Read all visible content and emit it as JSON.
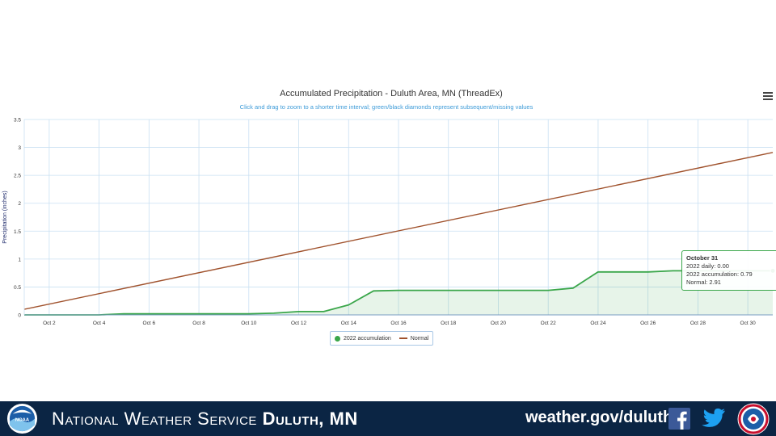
{
  "chart_data": {
    "type": "line",
    "title": "Accumulated Precipitation - Duluth Area, MN (ThreadEx)",
    "subtitle": "Click and drag to zoom to a shorter time interval; green/black diamonds represent subsequent/missing values",
    "ylabel": "Precipitation (inches)",
    "xlabel": "",
    "ylim": [
      0,
      3.5
    ],
    "xlim_days": [
      1,
      31
    ],
    "yticks": [
      "0",
      "0.5",
      "1",
      "1.5",
      "2",
      "2.5",
      "3",
      "3.5"
    ],
    "ytick_values": [
      0,
      0.5,
      1,
      1.5,
      2,
      2.5,
      3,
      3.5
    ],
    "xticks": [
      "Oct 2",
      "Oct 4",
      "Oct 6",
      "Oct 8",
      "Oct 10",
      "Oct 12",
      "Oct 14",
      "Oct 16",
      "Oct 18",
      "Oct 20",
      "Oct 22",
      "Oct 24",
      "Oct 26",
      "Oct 28",
      "Oct 30"
    ],
    "xtick_days": [
      2,
      4,
      6,
      8,
      10,
      12,
      14,
      16,
      18,
      20,
      22,
      24,
      26,
      28,
      30
    ],
    "grid": true,
    "legend_position": "bottom-center",
    "series": [
      {
        "name": "2022 accumulation",
        "color": "#3aa64a",
        "style": "area",
        "x": [
          1,
          2,
          3,
          4,
          5,
          6,
          7,
          8,
          9,
          10,
          11,
          12,
          13,
          14,
          15,
          16,
          17,
          18,
          19,
          20,
          21,
          22,
          23,
          24,
          25,
          26,
          27,
          28,
          29,
          30,
          31
        ],
        "values": [
          0,
          0,
          0,
          0,
          0.02,
          0.02,
          0.02,
          0.02,
          0.02,
          0.02,
          0.03,
          0.06,
          0.06,
          0.18,
          0.43,
          0.44,
          0.44,
          0.44,
          0.44,
          0.44,
          0.44,
          0.44,
          0.48,
          0.77,
          0.77,
          0.77,
          0.79,
          0.79,
          0.79,
          0.79,
          0.79
        ]
      },
      {
        "name": "Normal",
        "color": "#a0522d",
        "style": "line",
        "x": [
          1,
          31
        ],
        "values": [
          0.1,
          2.91
        ]
      }
    ],
    "tooltip": {
      "date": "October 31",
      "line1": "2022 daily: 0.00",
      "line2": "2022 accumulation: 0.79",
      "line3": "Normal: 2.91"
    }
  },
  "legend": {
    "items": [
      {
        "label": "2022 accumulation",
        "color": "#3aa64a",
        "marker": "dot"
      },
      {
        "label": "Normal",
        "color": "#a0522d",
        "marker": "line"
      }
    ]
  },
  "footer": {
    "title_regular": "National Weather Service",
    "title_bold": "Duluth, MN",
    "url": "weather.gov/duluth",
    "background_color": "#0b2544"
  },
  "icons": {
    "menu": "hamburger-menu-icon",
    "noaa": "noaa-logo",
    "facebook": "facebook-icon",
    "twitter": "twitter-icon",
    "nws": "nws-logo"
  }
}
